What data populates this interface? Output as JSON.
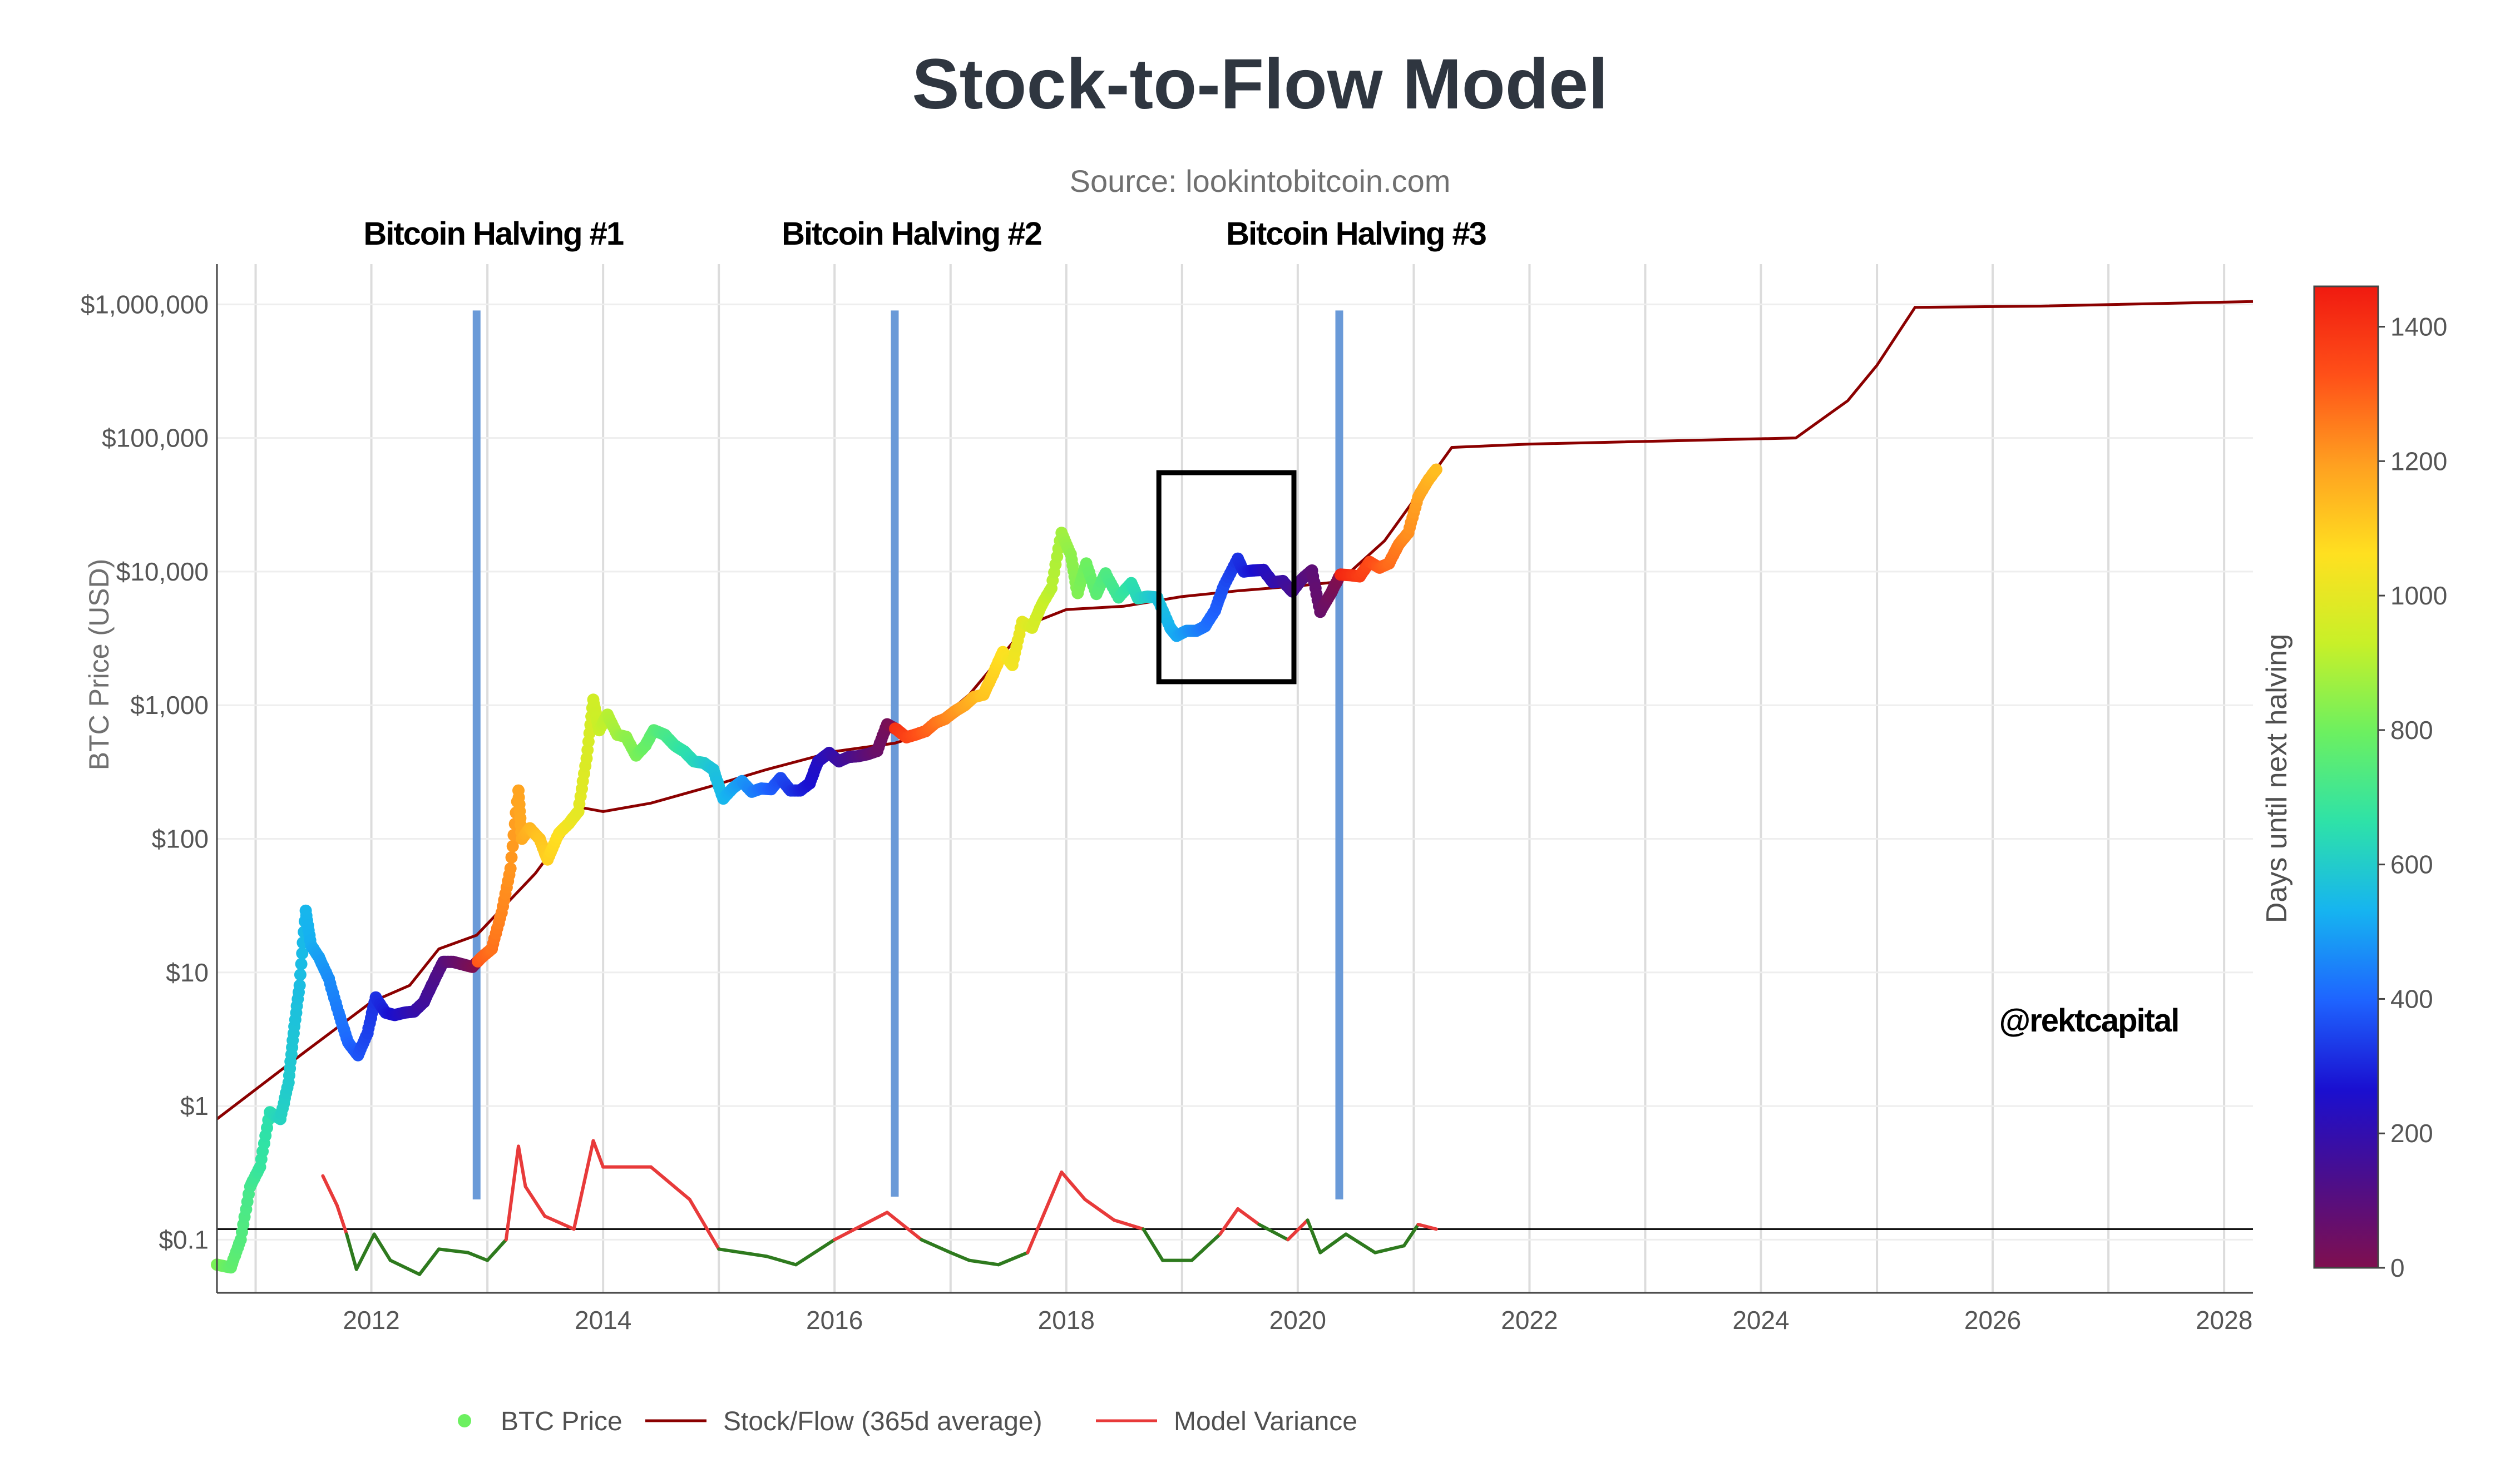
{
  "chart_data": {
    "type": "scatter",
    "title": "Stock-to-Flow Model",
    "subtitle": "Source: lookintobitcoin.com",
    "ylabel": "BTC Price (USD)",
    "xlabel": "",
    "y_scale": "log",
    "ylim": [
      0.04,
      2000000
    ],
    "xlim": [
      "2010-09-01",
      "2028-04-01"
    ],
    "x_ticks": [
      "2012",
      "2014",
      "2016",
      "2018",
      "2020",
      "2022",
      "2024",
      "2026",
      "2028"
    ],
    "y_ticks": [
      {
        "value": 0.1,
        "label": "$0.1"
      },
      {
        "value": 1,
        "label": "$1"
      },
      {
        "value": 10,
        "label": "$10"
      },
      {
        "value": 100,
        "label": "$100"
      },
      {
        "value": 1000,
        "label": "$1,000"
      },
      {
        "value": 10000,
        "label": "$10,000"
      },
      {
        "value": 100000,
        "label": "$100,000"
      },
      {
        "value": 1000000,
        "label": "$1,000,000"
      }
    ],
    "grid": true,
    "reference_line": {
      "value": 0.12
    },
    "halvings": [
      {
        "label": "Bitcoin Halving #1",
        "date": "2012-11-28",
        "top": 900000,
        "bottom": 0.2
      },
      {
        "label": "Bitcoin Halving #2",
        "date": "2016-07-09",
        "top": 900000,
        "bottom": 0.21
      },
      {
        "label": "Bitcoin Halving #3",
        "date": "2020-05-11",
        "top": 900000,
        "bottom": 0.2
      }
    ],
    "highlight_box": {
      "x0": "2018-10-20",
      "x1": "2019-12-20",
      "y0": 1500,
      "y1": 55000
    },
    "watermark": "@rektcapital",
    "colorbar": {
      "label": "Days until next halving",
      "min": 0,
      "max": 1460,
      "ticks": [
        0,
        200,
        400,
        600,
        800,
        1000,
        1200,
        1400
      ],
      "colors": [
        "#7f0f4f",
        "#4b0e8c",
        "#1a0fd0",
        "#1e64ff",
        "#16b4f0",
        "#2ee2a8",
        "#6cf060",
        "#c8f028",
        "#ffe020",
        "#ffa020",
        "#ff5018",
        "#f01a10"
      ]
    },
    "series": [
      {
        "name": "BTC Price",
        "kind": "markers",
        "color_by": "days_until_next_halving",
        "points": [
          [
            "2010-09-01",
            0.065
          ],
          [
            "2010-10-15",
            0.062
          ],
          [
            "2010-11-15",
            0.1
          ],
          [
            "2010-12-15",
            0.25
          ],
          [
            "2011-01-15",
            0.35
          ],
          [
            "2011-02-15",
            0.9
          ],
          [
            "2011-03-20",
            0.8
          ],
          [
            "2011-04-15",
            1.5
          ],
          [
            "2011-05-01",
            3.5
          ],
          [
            "2011-05-20",
            8
          ],
          [
            "2011-06-08",
            29
          ],
          [
            "2011-06-25",
            16
          ],
          [
            "2011-07-20",
            13
          ],
          [
            "2011-08-20",
            9
          ],
          [
            "2011-09-20",
            5
          ],
          [
            "2011-10-20",
            3
          ],
          [
            "2011-11-20",
            2.4
          ],
          [
            "2011-12-20",
            3.5
          ],
          [
            "2012-01-15",
            6.5
          ],
          [
            "2012-02-15",
            5
          ],
          [
            "2012-03-15",
            4.8
          ],
          [
            "2012-04-15",
            5
          ],
          [
            "2012-05-15",
            5.1
          ],
          [
            "2012-06-15",
            6
          ],
          [
            "2012-07-15",
            8.5
          ],
          [
            "2012-08-15",
            12
          ],
          [
            "2012-09-15",
            12
          ],
          [
            "2012-10-15",
            11.5
          ],
          [
            "2012-11-15",
            11
          ],
          [
            "2012-12-15",
            13
          ],
          [
            "2013-01-15",
            15
          ],
          [
            "2013-02-15",
            28
          ],
          [
            "2013-03-15",
            60
          ],
          [
            "2013-04-09",
            230
          ],
          [
            "2013-04-20",
            100
          ],
          [
            "2013-05-15",
            120
          ],
          [
            "2013-06-15",
            100
          ],
          [
            "2013-07-10",
            70
          ],
          [
            "2013-08-15",
            110
          ],
          [
            "2013-09-15",
            130
          ],
          [
            "2013-10-15",
            160
          ],
          [
            "2013-11-10",
            400
          ],
          [
            "2013-12-01",
            1100
          ],
          [
            "2013-12-20",
            650
          ],
          [
            "2014-01-15",
            850
          ],
          [
            "2014-02-15",
            600
          ],
          [
            "2014-03-15",
            580
          ],
          [
            "2014-04-15",
            420
          ],
          [
            "2014-05-15",
            500
          ],
          [
            "2014-06-10",
            650
          ],
          [
            "2014-07-15",
            600
          ],
          [
            "2014-08-15",
            500
          ],
          [
            "2014-09-15",
            450
          ],
          [
            "2014-10-15",
            380
          ],
          [
            "2014-11-15",
            370
          ],
          [
            "2014-12-15",
            330
          ],
          [
            "2015-01-15",
            200
          ],
          [
            "2015-02-15",
            240
          ],
          [
            "2015-03-15",
            270
          ],
          [
            "2015-04-15",
            225
          ],
          [
            "2015-05-15",
            238
          ],
          [
            "2015-06-15",
            235
          ],
          [
            "2015-07-15",
            285
          ],
          [
            "2015-08-15",
            230
          ],
          [
            "2015-09-15",
            230
          ],
          [
            "2015-10-15",
            260
          ],
          [
            "2015-11-10",
            380
          ],
          [
            "2015-12-15",
            440
          ],
          [
            "2016-01-15",
            380
          ],
          [
            "2016-02-15",
            410
          ],
          [
            "2016-03-15",
            415
          ],
          [
            "2016-04-15",
            430
          ],
          [
            "2016-05-15",
            455
          ],
          [
            "2016-06-15",
            720
          ],
          [
            "2016-07-15",
            660
          ],
          [
            "2016-08-15",
            575
          ],
          [
            "2016-09-15",
            605
          ],
          [
            "2016-10-15",
            640
          ],
          [
            "2016-11-15",
            740
          ],
          [
            "2016-12-15",
            790
          ],
          [
            "2017-01-15",
            900
          ],
          [
            "2017-02-15",
            1000
          ],
          [
            "2017-03-15",
            1150
          ],
          [
            "2017-04-15",
            1200
          ],
          [
            "2017-05-15",
            1700
          ],
          [
            "2017-06-15",
            2500
          ],
          [
            "2017-07-15",
            2000
          ],
          [
            "2017-08-15",
            4200
          ],
          [
            "2017-09-15",
            3800
          ],
          [
            "2017-10-15",
            5600
          ],
          [
            "2017-11-15",
            7500
          ],
          [
            "2017-12-17",
            19500
          ],
          [
            "2018-01-15",
            13500
          ],
          [
            "2018-02-06",
            6900
          ],
          [
            "2018-03-05",
            11500
          ],
          [
            "2018-04-06",
            6800
          ],
          [
            "2018-05-05",
            9700
          ],
          [
            "2018-06-15",
            6400
          ],
          [
            "2018-07-25",
            8200
          ],
          [
            "2018-08-15",
            6300
          ],
          [
            "2018-09-15",
            6500
          ],
          [
            "2018-10-15",
            6400
          ],
          [
            "2018-11-25",
            3800
          ],
          [
            "2018-12-15",
            3300
          ],
          [
            "2019-01-15",
            3600
          ],
          [
            "2019-02-15",
            3600
          ],
          [
            "2019-03-15",
            3900
          ],
          [
            "2019-04-15",
            5100
          ],
          [
            "2019-05-15",
            8000
          ],
          [
            "2019-06-26",
            12500
          ],
          [
            "2019-07-15",
            10000
          ],
          [
            "2019-08-15",
            10200
          ],
          [
            "2019-09-15",
            10300
          ],
          [
            "2019-10-15",
            8300
          ],
          [
            "2019-11-15",
            8500
          ],
          [
            "2019-12-15",
            7100
          ],
          [
            "2020-01-15",
            8800
          ],
          [
            "2020-02-15",
            10200
          ],
          [
            "2020-03-12",
            5000
          ],
          [
            "2020-04-15",
            6900
          ],
          [
            "2020-05-15",
            9500
          ],
          [
            "2020-06-15",
            9400
          ],
          [
            "2020-07-15",
            9200
          ],
          [
            "2020-08-15",
            11800
          ],
          [
            "2020-09-15",
            10700
          ],
          [
            "2020-10-15",
            11500
          ],
          [
            "2020-11-15",
            16000
          ],
          [
            "2020-12-15",
            19500
          ],
          [
            "2021-01-15",
            36000
          ],
          [
            "2021-02-15",
            48000
          ],
          [
            "2021-03-13",
            58000
          ]
        ]
      },
      {
        "name": "Stock/Flow (365d average)",
        "kind": "line",
        "color": "#8b0000",
        "points": [
          [
            "2010-09-01",
            0.8
          ],
          [
            "2011-06-01",
            2.5
          ],
          [
            "2012-01-01",
            6
          ],
          [
            "2012-05-01",
            8
          ],
          [
            "2012-08-01",
            15
          ],
          [
            "2012-11-28",
            19
          ],
          [
            "2013-06-01",
            55
          ],
          [
            "2013-11-01",
            170
          ],
          [
            "2014-01-01",
            160
          ],
          [
            "2014-06-01",
            185
          ],
          [
            "2014-12-01",
            245
          ],
          [
            "2015-06-01",
            330
          ],
          [
            "2016-01-01",
            450
          ],
          [
            "2016-07-09",
            520
          ],
          [
            "2016-10-01",
            600
          ],
          [
            "2017-03-01",
            1200
          ],
          [
            "2017-09-01",
            4000
          ],
          [
            "2018-01-01",
            5200
          ],
          [
            "2018-07-01",
            5500
          ],
          [
            "2019-01-01",
            6500
          ],
          [
            "2019-07-01",
            7200
          ],
          [
            "2020-01-01",
            7800
          ],
          [
            "2020-05-11",
            8400
          ],
          [
            "2020-10-01",
            17000
          ],
          [
            "2021-05-01",
            85000
          ],
          [
            "2022-01-01",
            90000
          ],
          [
            "2024-04-20",
            100000
          ],
          [
            "2024-10-01",
            190000
          ],
          [
            "2025-01-01",
            350000
          ],
          [
            "2025-05-01",
            950000
          ],
          [
            "2026-06-01",
            970000
          ],
          [
            "2028-04-01",
            1050000
          ]
        ]
      },
      {
        "name": "Model Variance",
        "kind": "line",
        "color_above": "#e83a3a",
        "color_below": "#2e7a1e",
        "points": [
          [
            "2011-08-01",
            0.3
          ],
          [
            "2011-09-15",
            0.18
          ],
          [
            "2011-10-15",
            0.11
          ],
          [
            "2011-11-15",
            0.06
          ],
          [
            "2012-01-10",
            0.11
          ],
          [
            "2012-03-01",
            0.07
          ],
          [
            "2012-06-01",
            0.055
          ],
          [
            "2012-08-01",
            0.085
          ],
          [
            "2012-11-01",
            0.08
          ],
          [
            "2013-01-01",
            0.07
          ],
          [
            "2013-03-01",
            0.1
          ],
          [
            "2013-04-09",
            0.5
          ],
          [
            "2013-05-01",
            0.25
          ],
          [
            "2013-07-01",
            0.15
          ],
          [
            "2013-10-01",
            0.12
          ],
          [
            "2013-12-01",
            0.55
          ],
          [
            "2014-01-01",
            0.35
          ],
          [
            "2014-06-01",
            0.35
          ],
          [
            "2014-10-01",
            0.2
          ],
          [
            "2015-01-01",
            0.085
          ],
          [
            "2015-06-01",
            0.075
          ],
          [
            "2015-09-01",
            0.065
          ],
          [
            "2016-01-01",
            0.1
          ],
          [
            "2016-06-15",
            0.16
          ],
          [
            "2016-10-01",
            0.1
          ],
          [
            "2017-01-01",
            0.08
          ],
          [
            "2017-03-01",
            0.07
          ],
          [
            "2017-06-01",
            0.065
          ],
          [
            "2017-09-01",
            0.08
          ],
          [
            "2017-12-17",
            0.32
          ],
          [
            "2018-03-01",
            0.2
          ],
          [
            "2018-06-01",
            0.14
          ],
          [
            "2018-09-01",
            0.12
          ],
          [
            "2018-11-01",
            0.07
          ],
          [
            "2019-02-01",
            0.07
          ],
          [
            "2019-05-01",
            0.11
          ],
          [
            "2019-06-26",
            0.17
          ],
          [
            "2019-09-01",
            0.13
          ],
          [
            "2019-12-01",
            0.1
          ],
          [
            "2020-02-01",
            0.14
          ],
          [
            "2020-03-12",
            0.08
          ],
          [
            "2020-06-01",
            0.11
          ],
          [
            "2020-09-01",
            0.08
          ],
          [
            "2020-12-01",
            0.09
          ],
          [
            "2021-01-15",
            0.13
          ],
          [
            "2021-03-13",
            0.12
          ]
        ]
      }
    ]
  },
  "legend": {
    "items": [
      {
        "label": "BTC Price",
        "color": "#6cf060",
        "kind": "marker"
      },
      {
        "label": "Stock/Flow (365d average)",
        "color": "#8b0000",
        "kind": "line"
      },
      {
        "label": "Model Variance",
        "color": "#e83a3a",
        "kind": "line"
      }
    ]
  }
}
